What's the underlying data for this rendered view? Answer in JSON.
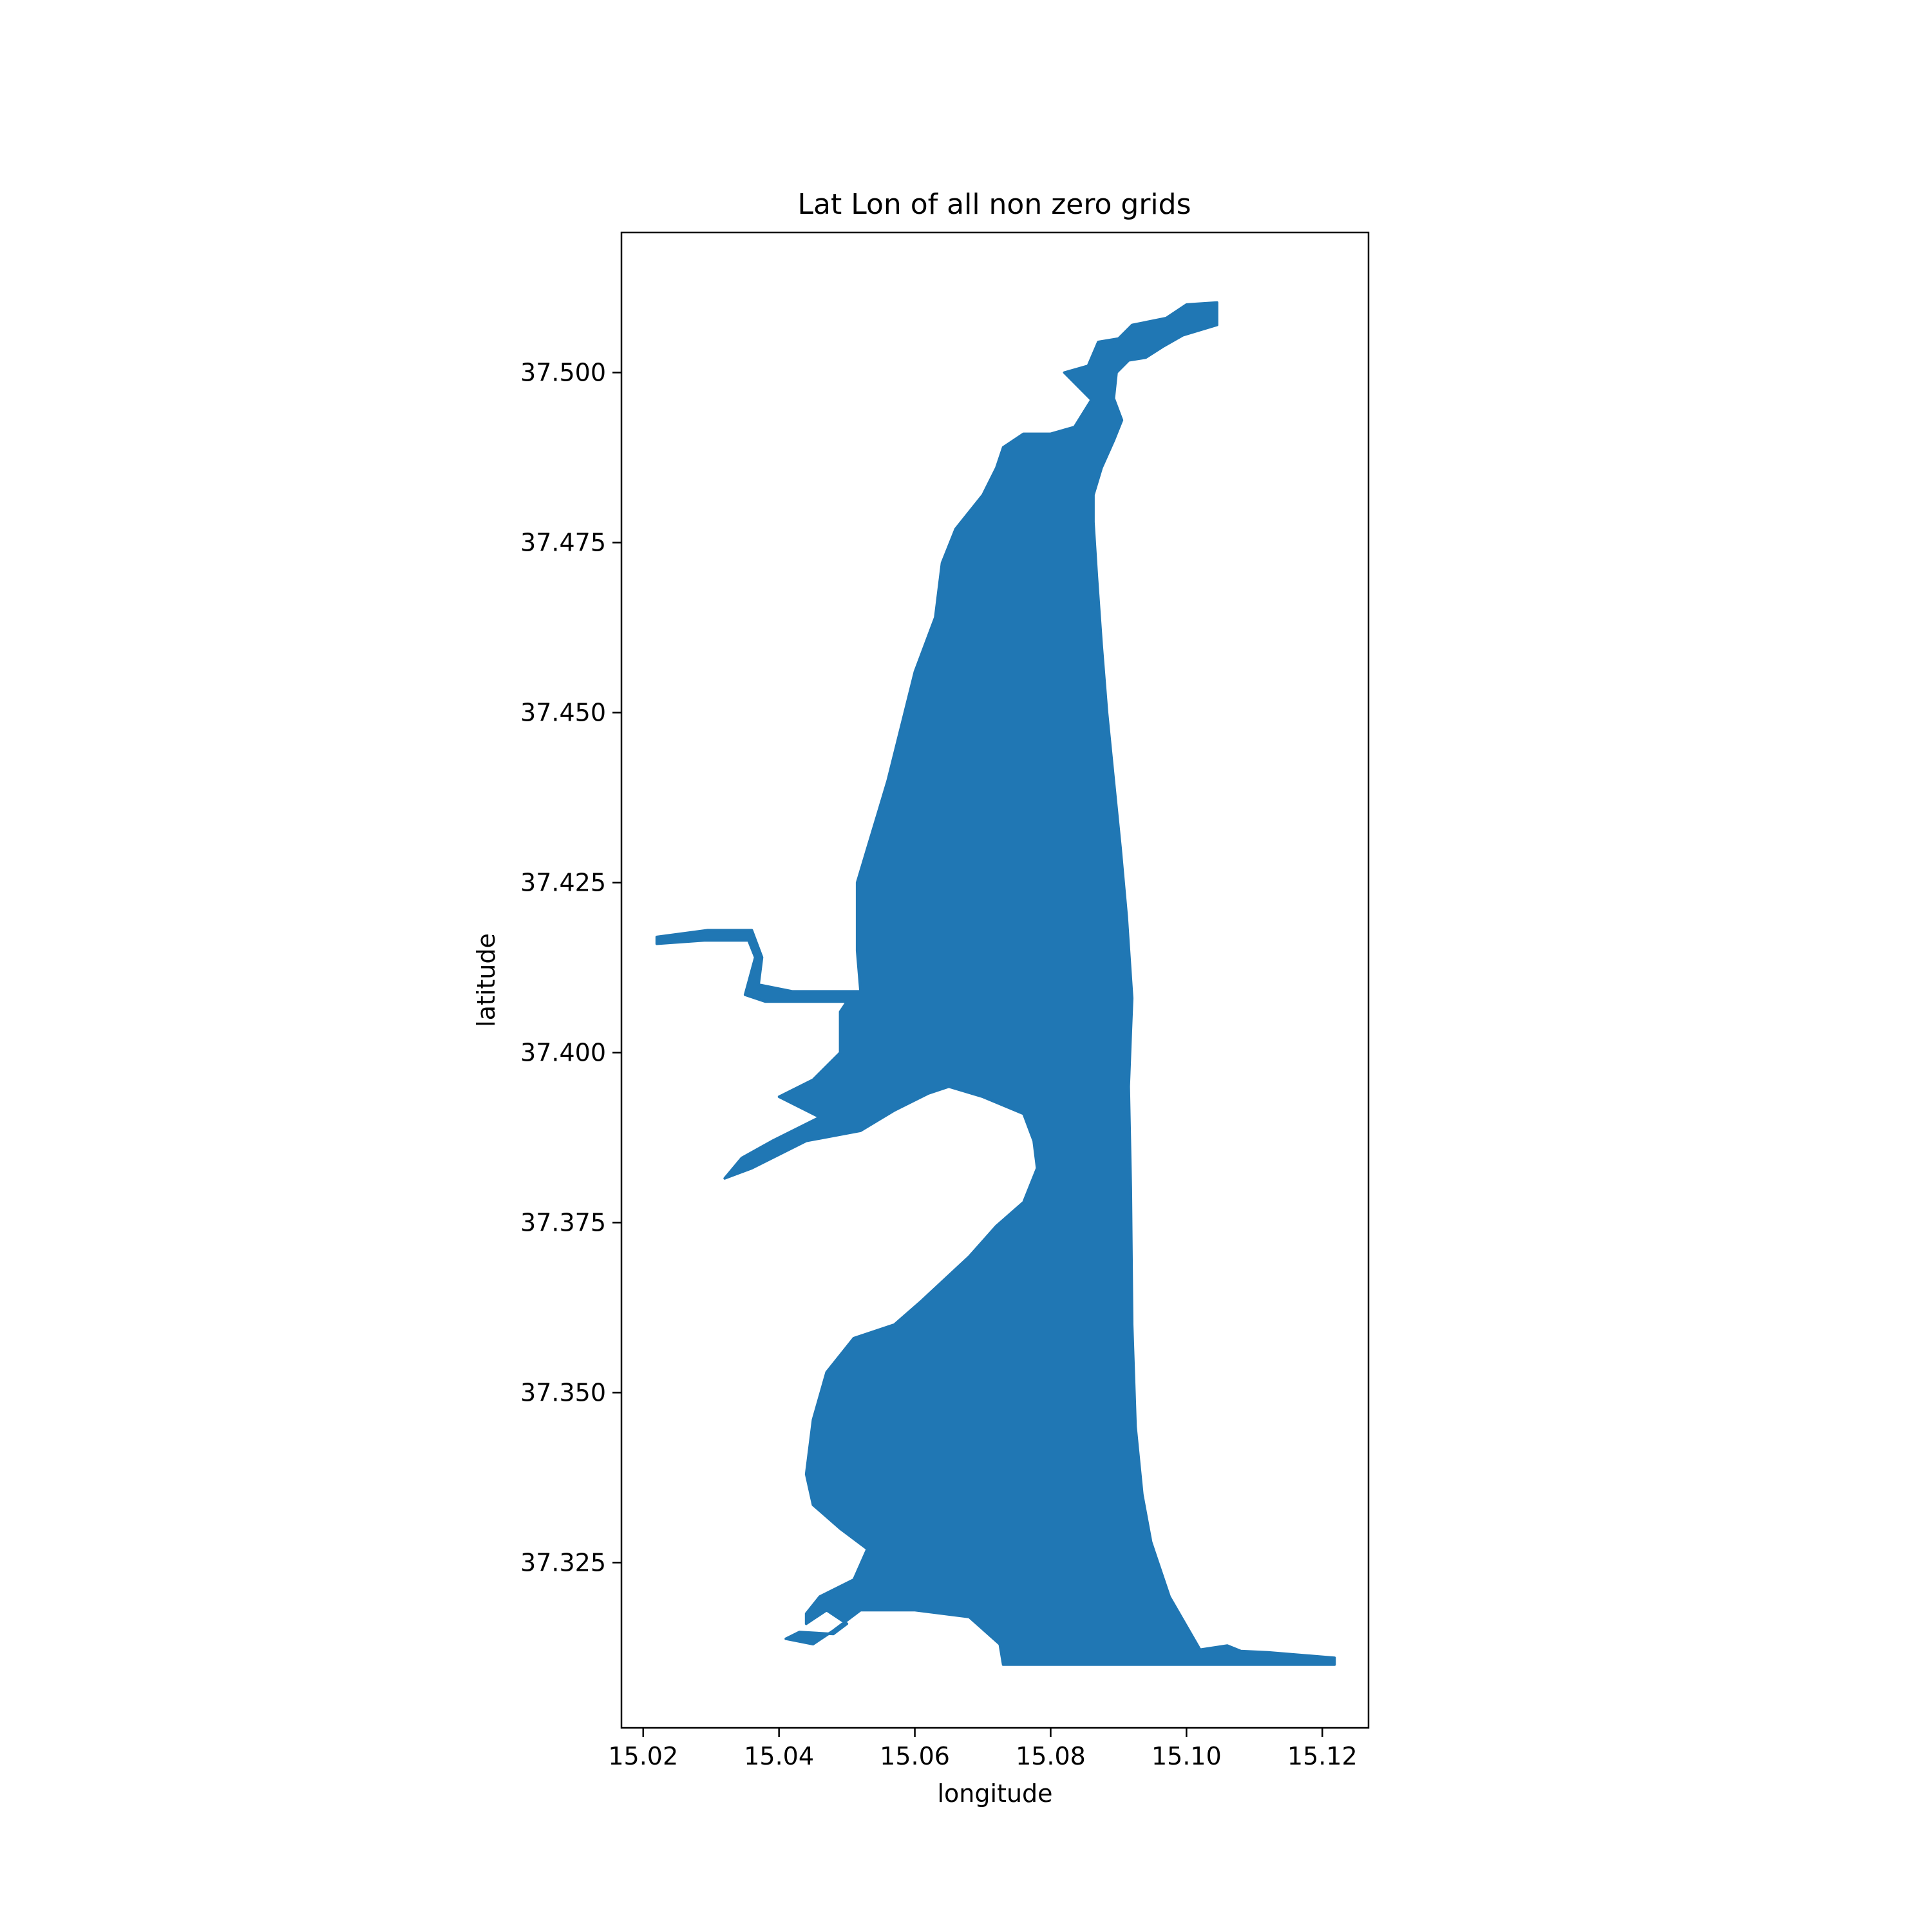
{
  "chart_data": {
    "type": "scatter",
    "title": "Lat Lon of all non zero grids",
    "xlabel": "longitude",
    "ylabel": "latitude",
    "xlim": [
      15.0168,
      15.1268
    ],
    "ylim": [
      37.3007,
      37.5206
    ],
    "xticks": [
      15.02,
      15.04,
      15.06,
      15.08,
      15.1,
      15.12
    ],
    "xtick_labels": [
      "15.02",
      "15.04",
      "15.06",
      "15.08",
      "15.10",
      "15.12"
    ],
    "yticks": [
      37.325,
      37.35,
      37.375,
      37.4,
      37.425,
      37.45,
      37.475,
      37.5
    ],
    "ytick_labels": [
      "37.325",
      "37.350",
      "37.375",
      "37.400",
      "37.425",
      "37.450",
      "37.475",
      "37.500"
    ],
    "grid": false,
    "color": "#2077b4",
    "series": [
      {
        "points": [
          [
            15.1045,
            37.5103
          ],
          [
            15.1045,
            37.507
          ],
          [
            15.0995,
            37.5055
          ],
          [
            15.0965,
            37.5038
          ],
          [
            15.094,
            37.5022
          ],
          [
            15.0915,
            37.5018
          ],
          [
            15.0897,
            37.5
          ],
          [
            15.0893,
            37.4962
          ],
          [
            15.0905,
            37.493
          ],
          [
            15.0893,
            37.49
          ],
          [
            15.0875,
            37.486
          ],
          [
            15.0863,
            37.482
          ],
          [
            15.0863,
            37.478
          ],
          [
            15.0868,
            37.47
          ],
          [
            15.0875,
            37.46
          ],
          [
            15.0883,
            37.45
          ],
          [
            15.0893,
            37.44
          ],
          [
            15.0903,
            37.43
          ],
          [
            15.0912,
            37.42
          ],
          [
            15.092,
            37.408
          ],
          [
            15.0918,
            37.403
          ],
          [
            15.0915,
            37.395
          ],
          [
            15.0918,
            37.38
          ],
          [
            15.092,
            37.36
          ],
          [
            15.0925,
            37.345
          ],
          [
            15.0935,
            37.335
          ],
          [
            15.0948,
            37.328
          ],
          [
            15.0975,
            37.32
          ],
          [
            15.102,
            37.3122
          ],
          [
            15.106,
            37.3128
          ],
          [
            15.108,
            37.312
          ],
          [
            15.112,
            37.3118
          ],
          [
            15.1218,
            37.311
          ],
          [
            15.1218,
            37.31
          ],
          [
            15.073,
            37.31
          ],
          [
            15.0725,
            37.313
          ],
          [
            15.068,
            37.317
          ],
          [
            15.06,
            37.318
          ],
          [
            15.052,
            37.318
          ],
          [
            15.048,
            37.315
          ],
          [
            15.045,
            37.313
          ],
          [
            15.041,
            37.3138
          ],
          [
            15.043,
            37.3148
          ],
          [
            15.048,
            37.3145
          ],
          [
            15.05,
            37.316
          ],
          [
            15.047,
            37.318
          ],
          [
            15.044,
            37.316
          ],
          [
            15.044,
            37.3175
          ],
          [
            15.046,
            37.32
          ],
          [
            15.051,
            37.3225
          ],
          [
            15.053,
            37.327
          ],
          [
            15.049,
            37.33
          ],
          [
            15.045,
            37.3335
          ],
          [
            15.044,
            37.338
          ],
          [
            15.045,
            37.346
          ],
          [
            15.047,
            37.353
          ],
          [
            15.051,
            37.358
          ],
          [
            15.057,
            37.36
          ],
          [
            15.061,
            37.3635
          ],
          [
            15.068,
            37.37
          ],
          [
            15.072,
            37.3745
          ],
          [
            15.076,
            37.378
          ],
          [
            15.078,
            37.383
          ],
          [
            15.0775,
            37.387
          ],
          [
            15.076,
            37.391
          ],
          [
            15.07,
            37.3935
          ],
          [
            15.065,
            37.395
          ],
          [
            15.062,
            37.394
          ],
          [
            15.057,
            37.3915
          ],
          [
            15.052,
            37.3885
          ],
          [
            15.044,
            37.387
          ],
          [
            15.036,
            37.383
          ],
          [
            15.032,
            37.3815
          ],
          [
            15.0345,
            37.3845
          ],
          [
            15.039,
            37.387
          ],
          [
            15.046,
            37.3905
          ],
          [
            15.04,
            37.3935
          ],
          [
            15.045,
            37.396
          ],
          [
            15.049,
            37.4
          ],
          [
            15.049,
            37.406
          ],
          [
            15.05,
            37.4075
          ],
          [
            15.038,
            37.4075
          ],
          [
            15.035,
            37.4085
          ],
          [
            15.0365,
            37.414
          ],
          [
            15.0355,
            37.4165
          ],
          [
            15.029,
            37.4165
          ],
          [
            15.022,
            37.416
          ],
          [
            15.022,
            37.417
          ],
          [
            15.0295,
            37.418
          ],
          [
            15.036,
            37.418
          ],
          [
            15.0375,
            37.414
          ],
          [
            15.037,
            37.41
          ],
          [
            15.042,
            37.409
          ],
          [
            15.052,
            37.409
          ],
          [
            15.0515,
            37.415
          ],
          [
            15.0515,
            37.425
          ],
          [
            15.053,
            37.43
          ],
          [
            15.0545,
            37.435
          ],
          [
            15.056,
            37.44
          ],
          [
            15.058,
            37.448
          ],
          [
            15.06,
            37.456
          ],
          [
            15.063,
            37.464
          ],
          [
            15.064,
            37.472
          ],
          [
            15.066,
            37.477
          ],
          [
            15.07,
            37.482
          ],
          [
            15.072,
            37.486
          ],
          [
            15.073,
            37.489
          ],
          [
            15.076,
            37.491
          ],
          [
            15.08,
            37.491
          ],
          [
            15.0835,
            37.492
          ],
          [
            15.086,
            37.496
          ],
          [
            15.082,
            37.5
          ],
          [
            15.0855,
            37.501
          ],
          [
            15.087,
            37.5045
          ],
          [
            15.09,
            37.505
          ],
          [
            15.092,
            37.507
          ],
          [
            15.097,
            37.508
          ],
          [
            15.1,
            37.51
          ],
          [
            15.1045,
            37.5103
          ]
        ]
      }
    ]
  }
}
